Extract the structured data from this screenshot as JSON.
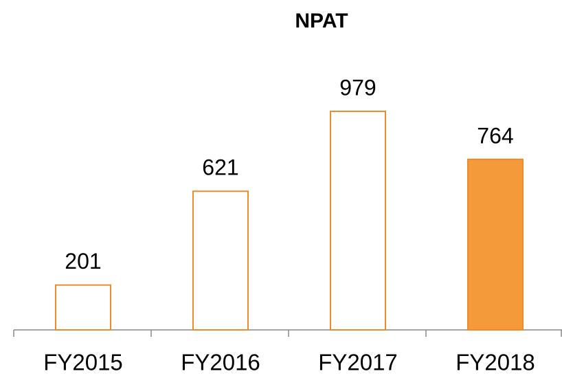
{
  "chart_data": {
    "type": "bar",
    "title": "NPAT",
    "categories": [
      "FY2015",
      "FY2016",
      "FY2017",
      "FY2018"
    ],
    "values": [
      201,
      621,
      979,
      764
    ],
    "colors": [
      "#ffffff",
      "#ffffff",
      "#ffffff",
      "#f59a3b"
    ],
    "edge_color": "#ed8b2c"
  }
}
